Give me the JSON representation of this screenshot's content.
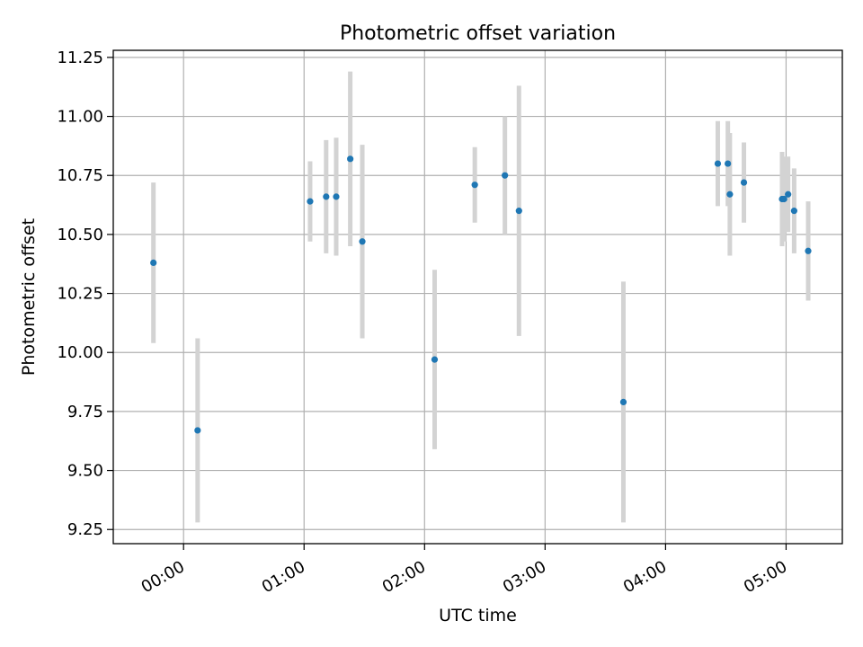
{
  "chart_data": {
    "type": "scatter",
    "title": "Photometric offset variation",
    "xlabel": "UTC time",
    "ylabel": "Photometric offset",
    "grid": true,
    "xlim": [
      "23:25",
      "05:28"
    ],
    "ylim": [
      9.19,
      11.28
    ],
    "x_ticks": [
      "00:00",
      "01:00",
      "02:00",
      "03:00",
      "04:00",
      "05:00"
    ],
    "y_ticks": [
      "9.25",
      "9.50",
      "9.75",
      "10.00",
      "10.25",
      "10.50",
      "10.75",
      "11.00",
      "11.25"
    ],
    "colors": {
      "point": "#1f77b4",
      "errorbar": "#d3d3d3",
      "grid": "#b0b0b0"
    },
    "points": [
      {
        "x": "23:45",
        "y": 10.38,
        "err": 0.34
      },
      {
        "x": "00:07",
        "y": 9.67,
        "err": 0.39
      },
      {
        "x": "01:03",
        "y": 10.64,
        "err": 0.17
      },
      {
        "x": "01:11",
        "y": 10.66,
        "err": 0.24
      },
      {
        "x": "01:16",
        "y": 10.66,
        "err": 0.25
      },
      {
        "x": "01:23",
        "y": 10.82,
        "err": 0.37
      },
      {
        "x": "01:29",
        "y": 10.47,
        "err": 0.41
      },
      {
        "x": "02:05",
        "y": 9.97,
        "err": 0.38
      },
      {
        "x": "02:25",
        "y": 10.71,
        "err": 0.16
      },
      {
        "x": "02:40",
        "y": 10.75,
        "err": 0.25
      },
      {
        "x": "02:47",
        "y": 10.6,
        "err": 0.53
      },
      {
        "x": "03:39",
        "y": 9.79,
        "err": 0.51
      },
      {
        "x": "04:26",
        "y": 10.8,
        "err": 0.18
      },
      {
        "x": "04:31",
        "y": 10.8,
        "err": 0.18
      },
      {
        "x": "04:32",
        "y": 10.67,
        "err": 0.26
      },
      {
        "x": "04:39",
        "y": 10.72,
        "err": 0.17
      },
      {
        "x": "04:58",
        "y": 10.65,
        "err": 0.2
      },
      {
        "x": "04:59",
        "y": 10.65,
        "err": 0.18
      },
      {
        "x": "05:01",
        "y": 10.67,
        "err": 0.16
      },
      {
        "x": "05:04",
        "y": 10.6,
        "err": 0.18
      },
      {
        "x": "05:11",
        "y": 10.43,
        "err": 0.21
      }
    ]
  }
}
